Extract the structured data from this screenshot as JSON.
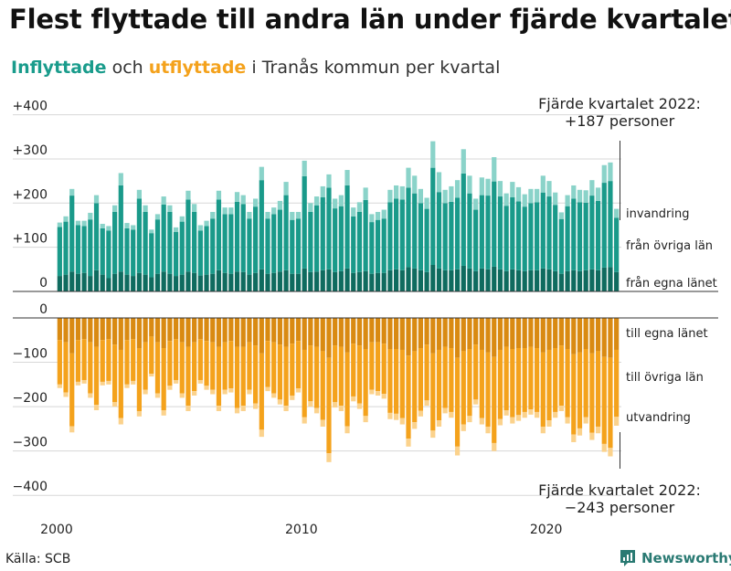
{
  "title": "Flest flyttade till andra län under fjärde kvartalet",
  "subtitle": {
    "in_word": "Inflyttade",
    "mid1": "och",
    "out_word": "utflyttade",
    "rest": "i Tranås kommun per kvartal"
  },
  "source": "Källa: SCB",
  "brand": "Newsworthy",
  "colors": {
    "in_dark": "#0f6b5f",
    "in_mid": "#1a9a8a",
    "in_light": "#8ad3c9",
    "out_dark": "#d98a12",
    "out_mid": "#f4a21c",
    "out_light": "#fbd28c"
  },
  "chart_data": {
    "type": "bar",
    "stacked": true,
    "title": "Flest flyttade till andra län under fjärde kvartalet",
    "subtitle": "Inflyttade och utflyttade i Tranås kommun per kvartal",
    "x_start_year": 2000,
    "quarters": 92,
    "x_ticks": [
      "2000",
      "2010",
      "2020"
    ],
    "y_ticks_top": [
      "+400",
      "+300",
      "+200",
      "+100",
      "0"
    ],
    "y_ticks_bottom": [
      "0",
      "−100",
      "−200",
      "−300",
      "−400"
    ],
    "ylim_top": [
      0,
      400
    ],
    "ylim_bottom": [
      -400,
      0
    ],
    "series_labels": {
      "in_egna": "från egna länet",
      "in_ovriga": "från övriga län",
      "in_invandring": "invandring",
      "out_egna": "till egna länet",
      "out_ovriga": "till övriga län",
      "out_utvandring": "utvandring"
    },
    "annotation_top": {
      "line1": "Fjärde kvartalet 2022:",
      "line2": "+187 personer"
    },
    "annotation_bottom": {
      "line1": "Fjärde kvartalet 2022:",
      "line2": "−243 personer"
    },
    "inflow_total": [
      156,
      170,
      232,
      160,
      160,
      178,
      218,
      153,
      148,
      195,
      268,
      155,
      150,
      230,
      195,
      140,
      175,
      215,
      195,
      145,
      170,
      228,
      198,
      150,
      160,
      180,
      228,
      190,
      190,
      225,
      218,
      180,
      210,
      282,
      180,
      190,
      205,
      248,
      180,
      180,
      296,
      200,
      215,
      238,
      265,
      210,
      218,
      275,
      190,
      202,
      235,
      175,
      180,
      185,
      230,
      240,
      238,
      280,
      262,
      232,
      212,
      340,
      270,
      230,
      238,
      252,
      322,
      262,
      210,
      258,
      255,
      304,
      250,
      222,
      248,
      236,
      220,
      232,
      232,
      262,
      250,
      224,
      179,
      218,
      240,
      230,
      229,
      252,
      235,
      286,
      292,
      187
    ],
    "inflow_egna": [
      35,
      38,
      45,
      40,
      42,
      35,
      48,
      38,
      30,
      40,
      45,
      38,
      35,
      42,
      38,
      32,
      40,
      45,
      40,
      35,
      38,
      45,
      42,
      36,
      38,
      40,
      48,
      42,
      40,
      45,
      44,
      38,
      42,
      50,
      40,
      42,
      45,
      48,
      40,
      40,
      52,
      44,
      45,
      48,
      50,
      44,
      46,
      52,
      42,
      44,
      46,
      40,
      42,
      42,
      48,
      50,
      48,
      55,
      52,
      48,
      44,
      60,
      52,
      48,
      48,
      50,
      58,
      52,
      46,
      52,
      50,
      56,
      50,
      46,
      50,
      48,
      46,
      48,
      48,
      52,
      50,
      46,
      40,
      46,
      48,
      46,
      48,
      50,
      48,
      54,
      55,
      44
    ],
    "inflow_invandring": [
      10,
      12,
      15,
      10,
      12,
      15,
      18,
      10,
      10,
      15,
      28,
      12,
      10,
      20,
      15,
      8,
      12,
      18,
      15,
      10,
      12,
      20,
      18,
      12,
      12,
      15,
      20,
      15,
      15,
      22,
      20,
      15,
      18,
      30,
      15,
      15,
      20,
      30,
      18,
      15,
      35,
      20,
      20,
      25,
      30,
      22,
      25,
      35,
      20,
      22,
      28,
      18,
      18,
      20,
      28,
      30,
      30,
      45,
      40,
      32,
      25,
      60,
      45,
      30,
      35,
      40,
      55,
      40,
      25,
      40,
      38,
      55,
      35,
      28,
      35,
      32,
      28,
      32,
      30,
      38,
      35,
      28,
      15,
      25,
      30,
      28,
      28,
      35,
      30,
      40,
      42,
      20
    ],
    "outflow_total": [
      158,
      178,
      258,
      152,
      148,
      180,
      208,
      152,
      150,
      200,
      240,
      158,
      150,
      222,
      172,
      132,
      180,
      220,
      162,
      148,
      180,
      210,
      175,
      148,
      162,
      172,
      210,
      172,
      168,
      215,
      210,
      172,
      205,
      268,
      165,
      180,
      195,
      210,
      185,
      168,
      238,
      200,
      215,
      245,
      325,
      202,
      210,
      260,
      188,
      205,
      235,
      172,
      175,
      182,
      228,
      230,
      240,
      290,
      250,
      222,
      198,
      270,
      245,
      215,
      225,
      310,
      255,
      235,
      195,
      240,
      260,
      300,
      242,
      220,
      238,
      232,
      225,
      218,
      225,
      260,
      245,
      225,
      210,
      238,
      280,
      265,
      238,
      275,
      260,
      302,
      312,
      243
    ],
    "outflow_egna": [
      50,
      55,
      80,
      50,
      48,
      55,
      65,
      50,
      48,
      60,
      72,
      50,
      48,
      68,
      55,
      42,
      55,
      68,
      52,
      48,
      55,
      65,
      55,
      48,
      52,
      55,
      65,
      55,
      52,
      65,
      65,
      55,
      62,
      80,
      52,
      55,
      60,
      65,
      58,
      52,
      72,
      62,
      65,
      75,
      90,
      62,
      65,
      78,
      58,
      62,
      70,
      55,
      55,
      58,
      70,
      70,
      72,
      85,
      75,
      68,
      60,
      80,
      72,
      65,
      68,
      90,
      75,
      70,
      60,
      72,
      78,
      88,
      72,
      65,
      70,
      68,
      68,
      65,
      68,
      78,
      72,
      68,
      62,
      70,
      82,
      78,
      70,
      80,
      75,
      88,
      90,
      72
    ],
    "outflow_utvandring": [
      8,
      10,
      14,
      8,
      8,
      10,
      12,
      8,
      8,
      10,
      14,
      8,
      8,
      12,
      10,
      6,
      10,
      12,
      9,
      8,
      10,
      12,
      10,
      8,
      9,
      10,
      12,
      10,
      9,
      12,
      12,
      10,
      12,
      16,
      9,
      10,
      11,
      12,
      10,
      9,
      14,
      12,
      12,
      15,
      20,
      12,
      12,
      16,
      11,
      12,
      14,
      10,
      10,
      11,
      14,
      14,
      14,
      18,
      15,
      13,
      12,
      16,
      14,
      12,
      13,
      20,
      15,
      14,
      11,
      14,
      15,
      18,
      14,
      12,
      14,
      13,
      13,
      12,
      13,
      15,
      14,
      13,
      12,
      14,
      17,
      16,
      14,
      16,
      15,
      18,
      19,
      20
    ]
  }
}
